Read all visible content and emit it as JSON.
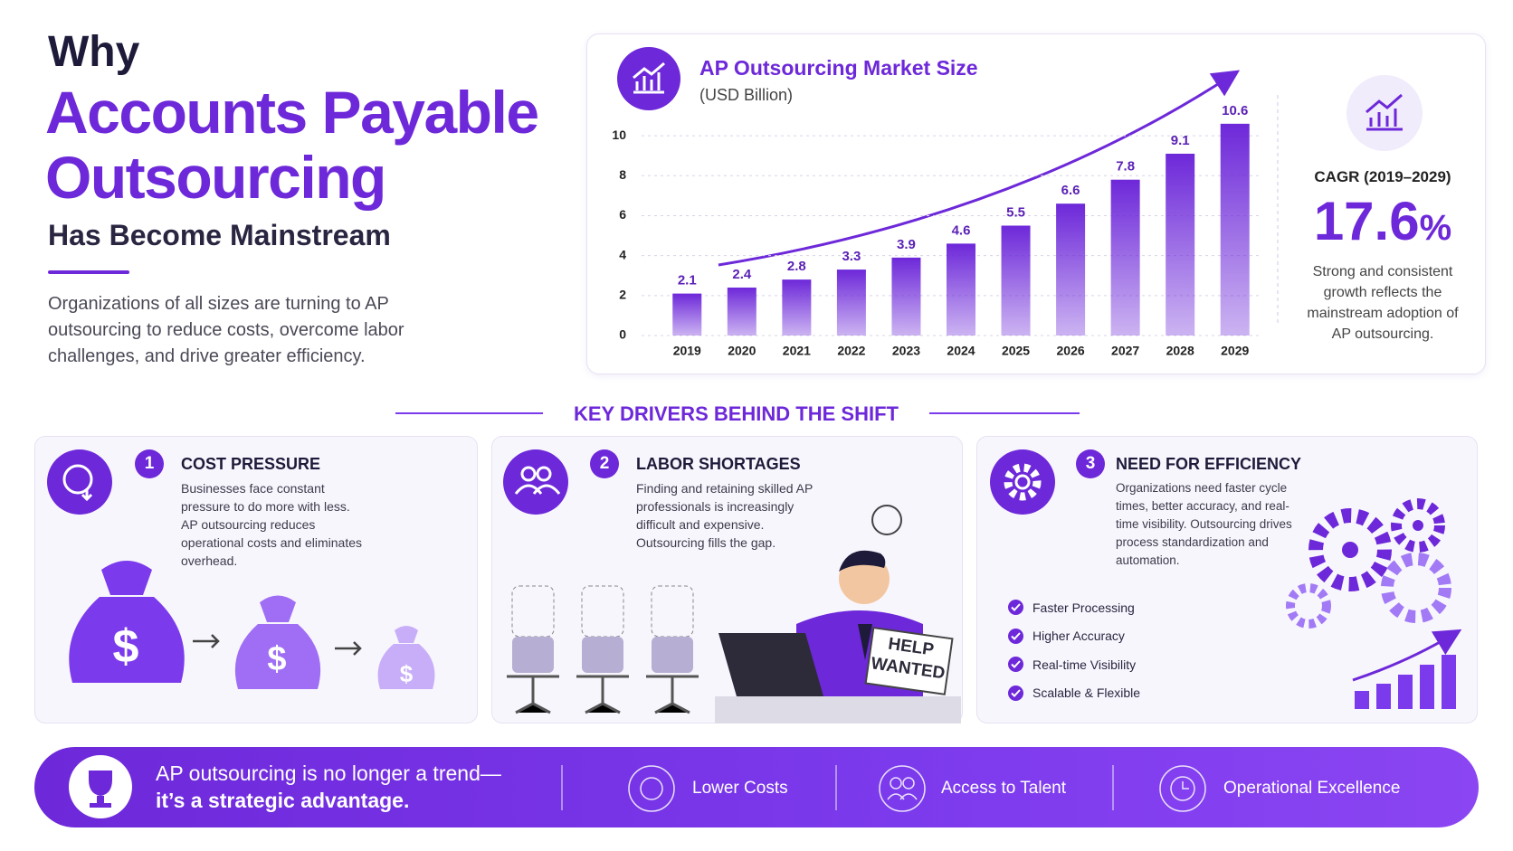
{
  "header": {
    "line1": "Why",
    "line2": "Accounts Payable",
    "line3": "Outsourcing",
    "subtitle": "Has Become Mainstream",
    "intro": "Organizations of all sizes are turning to AP outsourcing to reduce costs, overcome labor challenges, and drive greater efficiency."
  },
  "chart_data": {
    "type": "bar",
    "title": "AP Outsourcing Market Size",
    "subtitle": "(USD Billion)",
    "categories": [
      "2019",
      "2020",
      "2021",
      "2022",
      "2023",
      "2024",
      "2025",
      "2026",
      "2027",
      "2028",
      "2029"
    ],
    "values": [
      2.1,
      2.4,
      2.8,
      3.3,
      3.9,
      4.6,
      5.5,
      6.6,
      7.8,
      9.1,
      10.6
    ],
    "color": "#6d28d9",
    "ylim": [
      0,
      11
    ],
    "yticks": [
      0,
      2,
      4,
      6,
      8,
      10
    ],
    "grid": true
  },
  "cagr": {
    "label": "CAGR (2019–2029)",
    "value": 17.6,
    "unit": "%",
    "description": "Strong and consistent growth reflects the mainstream adoption of AP outsourcing."
  },
  "drivers_heading": "KEY DRIVERS BEHIND THE SHIFT",
  "drivers": [
    {
      "number": 1,
      "title": "COST PRESSURE",
      "text": "Businesses face constant pressure to do more with less. AP outsourcing reduces operational costs and eliminates overhead.",
      "symbol": "$"
    },
    {
      "number": 2,
      "title": "LABOR SHORTAGES",
      "text": "Finding and retaining skilled AP professionals is increasingly difficult and expensive. Outsourcing fills the gap.",
      "sign": [
        "HELP",
        "WANTED"
      ]
    },
    {
      "number": 3,
      "title": "NEED FOR EFFICIENCY",
      "text": "Organizations need faster cycle times, better accuracy, and real-time visibility. Outsourcing drives process standardization and automation.",
      "benefits": [
        "Faster Processing",
        "Higher Accuracy",
        "Real-time Visibility",
        "Scalable & Flexible"
      ]
    }
  ],
  "footer": {
    "message": [
      "AP outsourcing is no longer a trend—",
      "it’s a strategic advantage."
    ],
    "items": [
      "Lower Costs",
      "Access to Talent",
      "Operational Excellence"
    ]
  }
}
